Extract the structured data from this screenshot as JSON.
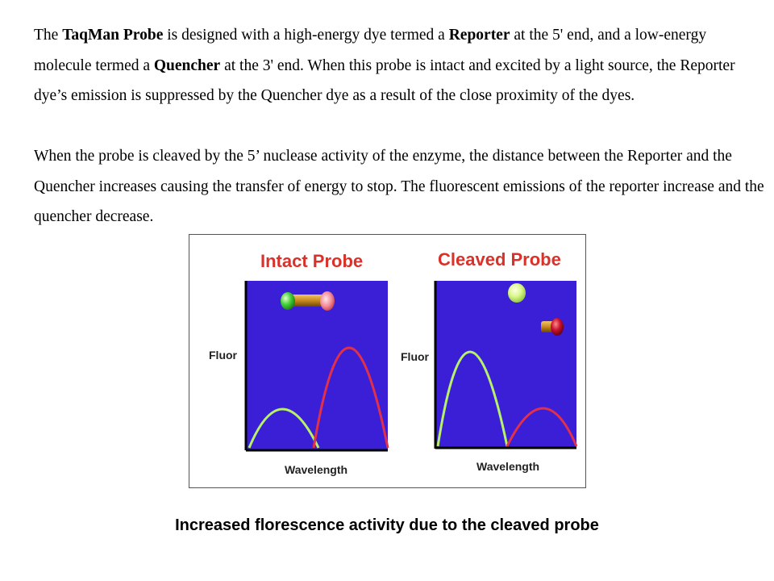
{
  "paragraph1": {
    "t1": "The ",
    "b1": "TaqMan Probe",
    "t2": " is designed with a high-energy dye termed a ",
    "b2": "Reporter",
    "t3": " at the 5' end, and a low-energy molecule termed a ",
    "b3": "Quencher",
    "t4": " at the 3' end. When this probe is intact and excited by a light source, the Reporter dye’s emission is suppressed by the Quencher dye as a result of the close proximity of the dyes."
  },
  "paragraph2": "When the probe is cleaved by the 5’ nuclease activity of the enzyme, the distance between the Reporter and the Quencher increases causing the transfer of energy to stop. The fluorescent emissions of the reporter increase and the quencher decrease.",
  "figure": {
    "left_panel": {
      "title": "Intact Probe",
      "ylabel": "Fluor",
      "xlabel": "Wavelength"
    },
    "right_panel": {
      "title": "Cleaved Probe",
      "ylabel": "Fluor",
      "xlabel": "Wavelength"
    },
    "colors": {
      "plot_bg": "#3a1fd6",
      "title": "#d8322a",
      "reporter_curve": "#b7f06a",
      "quencher_curve": "#e0304a",
      "reporter_dye": "#46d43a",
      "quencher_dye": "#c8102e",
      "linker": "#c98a1e"
    }
  },
  "caption": "Increased florescence activity due to the cleaved probe"
}
